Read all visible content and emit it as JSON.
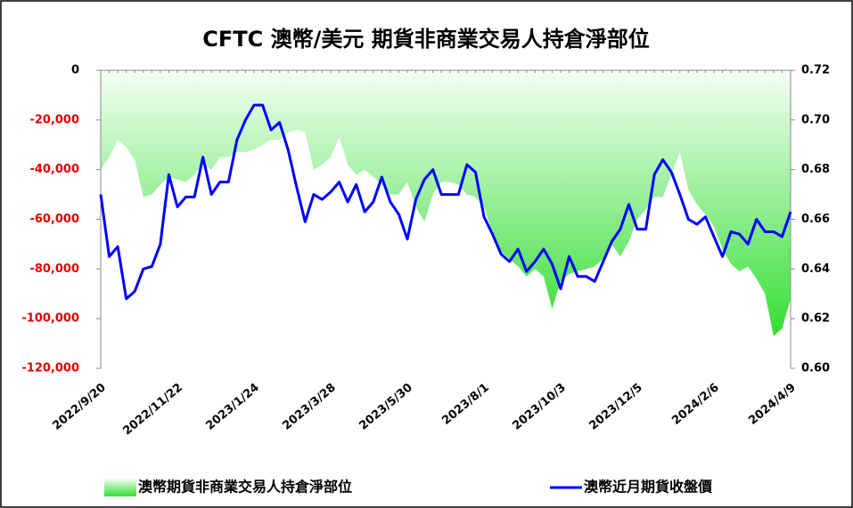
{
  "chart_data": {
    "type": "area_line",
    "title": "CFTC 澳幣/美元 期貨非商業交易人持倉淨部位",
    "categories": [
      "2022/9/20",
      null,
      null,
      null,
      null,
      null,
      null,
      null,
      null,
      "2022/11/22",
      null,
      null,
      null,
      null,
      null,
      null,
      null,
      null,
      "2023/1/24",
      null,
      null,
      null,
      null,
      null,
      null,
      null,
      null,
      "2023/3/28",
      null,
      null,
      null,
      null,
      null,
      null,
      null,
      null,
      "2023/5/30",
      null,
      null,
      null,
      null,
      null,
      null,
      null,
      null,
      "2023/8/1",
      null,
      null,
      null,
      null,
      null,
      null,
      null,
      null,
      "2023/10/3",
      null,
      null,
      null,
      null,
      null,
      null,
      null,
      null,
      "2023/12/5",
      null,
      null,
      null,
      null,
      null,
      null,
      null,
      null,
      "2024/2/6",
      null,
      null,
      null,
      null,
      null,
      null,
      null,
      null,
      "2024/4/9"
    ],
    "series": [
      {
        "name": "澳幣期貨非商業交易人持倉淨部位",
        "type": "area",
        "color": "#33dd33",
        "values": [
          -40000,
          -35000,
          -28000,
          -31000,
          -36000,
          -51000,
          -50000,
          -46000,
          -43000,
          -44000,
          -45000,
          -42000,
          -38000,
          -40000,
          -35000,
          -35000,
          -33000,
          -33000,
          -32000,
          -30000,
          -28000,
          -28000,
          -25000,
          -24000,
          -25000,
          -40000,
          -38000,
          -35000,
          -27000,
          -38000,
          -42000,
          -40000,
          -43000,
          -46000,
          -50000,
          -50000,
          -45000,
          -55000,
          -61000,
          -50000,
          -45000,
          -45000,
          -46000,
          -50000,
          -51000,
          -55000,
          -66000,
          -73000,
          -76000,
          -79000,
          -83000,
          -80000,
          -83000,
          -96000,
          -85000,
          -82000,
          -81000,
          -80000,
          -79000,
          -76000,
          -70000,
          -75000,
          -69000,
          -60000,
          -56000,
          -51000,
          -51000,
          -42000,
          -33000,
          -48000,
          -54000,
          -58000,
          -63000,
          -72000,
          -78000,
          -81000,
          -79000,
          -84000,
          -90000,
          -107000,
          -104000,
          -92000
        ]
      },
      {
        "name": "澳幣近月期貨收盤價",
        "type": "line",
        "axis": "y2",
        "color": "#0000ff",
        "values": [
          0.67,
          0.645,
          0.649,
          0.628,
          0.631,
          0.64,
          0.641,
          0.65,
          0.678,
          0.665,
          0.669,
          0.669,
          0.685,
          0.67,
          0.675,
          0.675,
          0.692,
          0.7,
          0.706,
          0.706,
          0.696,
          0.699,
          0.688,
          0.673,
          0.659,
          0.67,
          0.668,
          0.671,
          0.675,
          0.667,
          0.674,
          0.663,
          0.667,
          0.677,
          0.667,
          0.662,
          0.652,
          0.668,
          0.676,
          0.68,
          0.67,
          0.67,
          0.67,
          0.682,
          0.679,
          0.661,
          0.654,
          0.646,
          0.643,
          0.648,
          0.639,
          0.643,
          0.648,
          0.642,
          0.632,
          0.645,
          0.637,
          0.637,
          0.635,
          0.643,
          0.651,
          0.656,
          0.666,
          0.656,
          0.656,
          0.678,
          0.684,
          0.679,
          0.67,
          0.66,
          0.658,
          0.661,
          0.653,
          0.645,
          0.655,
          0.654,
          0.65,
          0.66,
          0.655,
          0.655,
          0.653,
          0.663
        ]
      }
    ],
    "ylim": [
      -120000,
      0
    ],
    "yticks": [
      0,
      {
        "value": -20000,
        "label": "-20,000"
      },
      {
        "value": -40000,
        "label": "-40,000"
      },
      {
        "value": -60000,
        "label": "-60,000"
      },
      {
        "value": -80000,
        "label": "-80,000"
      },
      {
        "value": -100000,
        "label": "-100,000"
      },
      {
        "value": -120000,
        "label": "-120,000"
      }
    ],
    "y2lim": [
      0.6,
      0.72
    ],
    "y2ticks": [
      0.72,
      {
        "value": 0.7,
        "label": "0.70"
      },
      0.68,
      0.66,
      0.64,
      0.62,
      {
        "value": 0.6,
        "label": "0.60"
      }
    ],
    "legend": "bottom"
  }
}
